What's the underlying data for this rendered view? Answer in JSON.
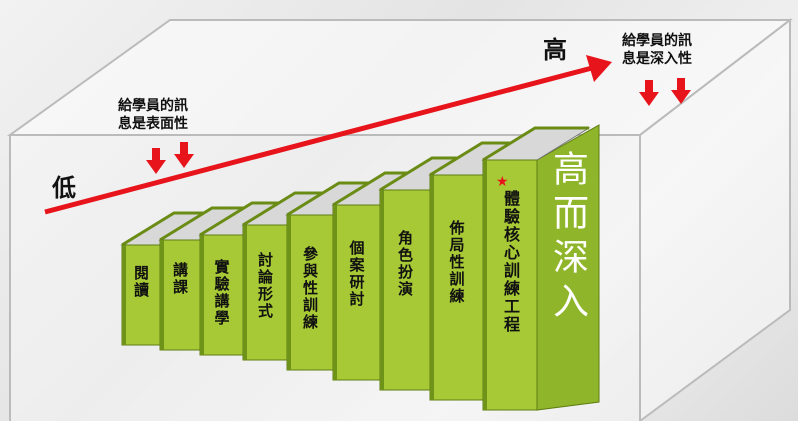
{
  "low_label": "低",
  "high_label": "高",
  "note_left": [
    "給學員的訊",
    "息是表面性"
  ],
  "note_right": [
    "給學員的訊",
    "息是深入性"
  ],
  "books": [
    {
      "label": "閱讀"
    },
    {
      "label": "講課"
    },
    {
      "label": "實驗講學"
    },
    {
      "label": "討論形式"
    },
    {
      "label": "參與性訓練"
    },
    {
      "label": "個案研討"
    },
    {
      "label": "角色扮演"
    },
    {
      "label": "佈局性訓練"
    },
    {
      "label": "體驗核心訓練工程",
      "spine": "高而深入"
    }
  ]
}
